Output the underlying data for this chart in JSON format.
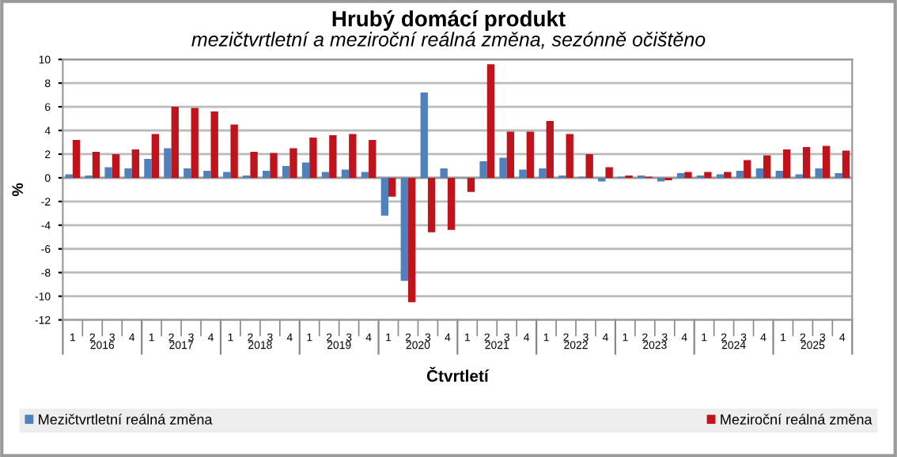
{
  "chart_data": {
    "type": "bar",
    "title": "Hrubý domácí produkt",
    "subtitle": "mezičtvrtletní a meziroční reálná změna, sezónně očištěno",
    "xlabel": "Čtvrtletí",
    "ylabel": "%",
    "categories": [
      "1",
      "2",
      "3",
      "4",
      "1",
      "2",
      "3",
      "4",
      "1",
      "2",
      "3",
      "4",
      "1",
      "2",
      "3",
      "4",
      "1",
      "2",
      "3",
      "4",
      "1",
      "2",
      "3",
      "4",
      "1",
      "2",
      "3",
      "4",
      "1",
      "2",
      "3",
      "4",
      "1",
      "2",
      "3",
      "4",
      "1",
      "2",
      "3",
      "4"
    ],
    "annotations": [
      "2016",
      "2017",
      "2018",
      "2019",
      "2020",
      "2021",
      "2022",
      "2023",
      "2024",
      "2025"
    ],
    "series": [
      {
        "name": "Mezičtvrtletní reálná změna",
        "color": "#4f81bd",
        "values": [
          0.3,
          0.2,
          0.9,
          0.8,
          1.6,
          2.5,
          0.8,
          0.6,
          0.5,
          0.2,
          0.6,
          1.0,
          1.3,
          0.5,
          0.7,
          0.5,
          -3.2,
          -8.7,
          7.2,
          0.8,
          0.0,
          1.4,
          1.7,
          0.7,
          0.8,
          0.2,
          0.1,
          -0.3,
          0.1,
          0.2,
          -0.3,
          0.4,
          0.2,
          0.3,
          0.6,
          0.8,
          0.6,
          0.3,
          0.8,
          0.4
        ]
      },
      {
        "name": "Meziroční reálná změna",
        "color": "#c0141c",
        "values": [
          3.2,
          2.2,
          2.0,
          2.4,
          3.7,
          6.0,
          5.9,
          5.6,
          4.5,
          2.2,
          2.1,
          2.5,
          3.4,
          3.6,
          3.7,
          3.2,
          -1.6,
          -10.5,
          -4.6,
          -4.4,
          -1.2,
          9.6,
          3.9,
          3.9,
          4.8,
          3.7,
          2.0,
          0.9,
          0.2,
          0.1,
          -0.2,
          0.5,
          0.5,
          0.5,
          1.5,
          1.9,
          2.4,
          2.6,
          2.7,
          2.3
        ]
      }
    ],
    "ylim": [
      -12,
      10
    ],
    "yticks": [
      -12,
      -10,
      -8,
      -6,
      -4,
      -2,
      0,
      2,
      4,
      6,
      8,
      10
    ],
    "grid": "y",
    "legend": "bottom"
  }
}
